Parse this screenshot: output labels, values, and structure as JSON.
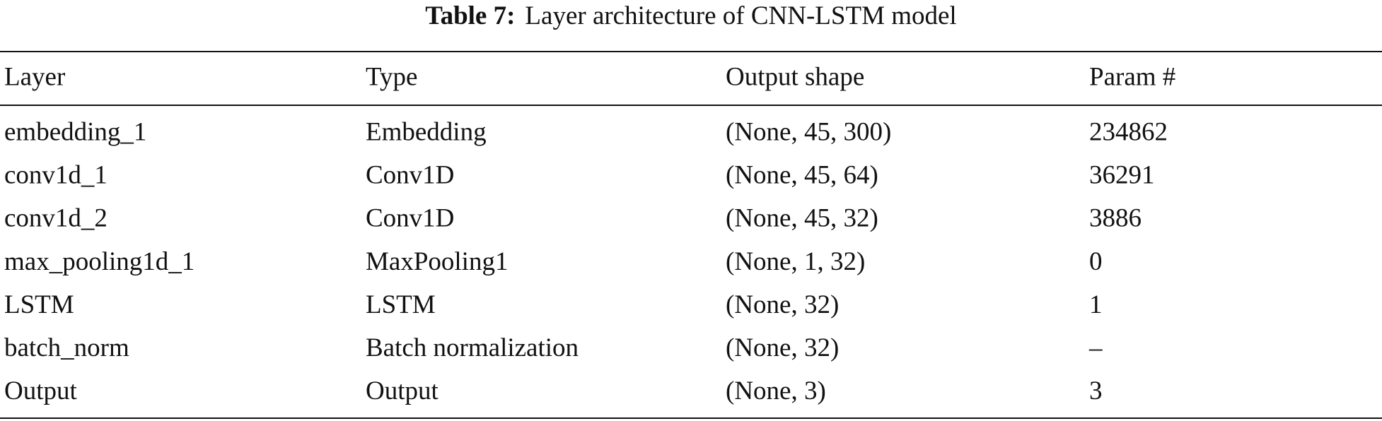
{
  "caption": {
    "label": "Table 7:",
    "text": "Layer architecture of CNN-LSTM model"
  },
  "table": {
    "header": [
      "Layer",
      "Type",
      "Output shape",
      "Param #"
    ],
    "rows": [
      [
        "embedding_1",
        "Embedding",
        "(None, 45, 300)",
        "234862"
      ],
      [
        "conv1d_1",
        "Conv1D",
        "(None, 45, 64)",
        "36291"
      ],
      [
        "conv1d_2",
        "Conv1D",
        "(None, 45, 32)",
        "3886"
      ],
      [
        "max_pooling1d_1",
        "MaxPooling1",
        "(None, 1, 32)",
        "0"
      ],
      [
        "LSTM",
        "LSTM",
        "(None, 32)",
        "1"
      ],
      [
        "batch_norm",
        "Batch normalization",
        "(None, 32)",
        "–"
      ],
      [
        "Output",
        "Output",
        "(None, 3)",
        "3"
      ]
    ]
  }
}
